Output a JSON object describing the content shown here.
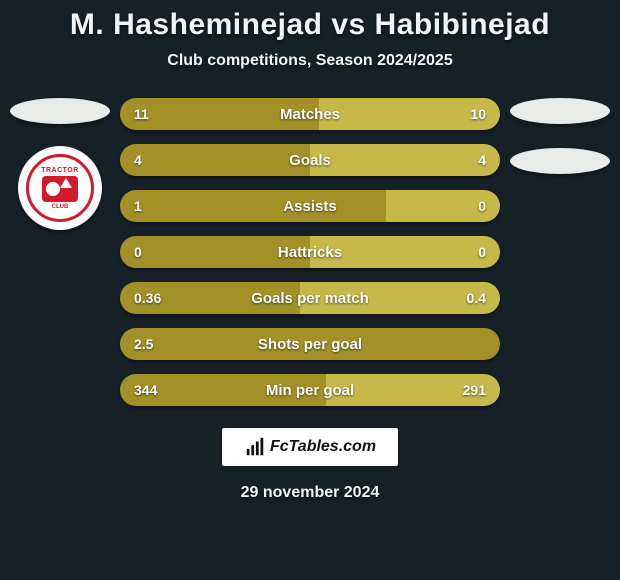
{
  "background_color": "#162027",
  "text_color": "#f2f5f7",
  "title": "M. Hasheminejad vs Habibinejad",
  "title_fontsize": 30,
  "subtitle": "Club competitions, Season 2024/2025",
  "subtitle_fontsize": 16,
  "ellipse_color": "#e8ebe8",
  "club": {
    "top_text": "TRACTOR",
    "bottom_text": "CLUB",
    "ring_color": "#d11a2a"
  },
  "bars": {
    "left_color": "#a39128",
    "right_color": "#c7b84a",
    "label_color": "#ffffff",
    "value_color": "#ffffff",
    "rows": [
      {
        "label": "Matches",
        "left_val": "11",
        "right_val": "10",
        "left_pct": 52.4,
        "right_pct": 47.6
      },
      {
        "label": "Goals",
        "left_val": "4",
        "right_val": "4",
        "left_pct": 50.0,
        "right_pct": 50.0
      },
      {
        "label": "Assists",
        "left_val": "1",
        "right_val": "0",
        "left_pct": 70.0,
        "right_pct": 30.0
      },
      {
        "label": "Hattricks",
        "left_val": "0",
        "right_val": "0",
        "left_pct": 50.0,
        "right_pct": 50.0
      },
      {
        "label": "Goals per match",
        "left_val": "0.36",
        "right_val": "0.4",
        "left_pct": 47.4,
        "right_pct": 52.6
      },
      {
        "label": "Shots per goal",
        "left_val": "2.5",
        "right_val": "",
        "left_pct": 100.0,
        "right_pct": 0.0
      },
      {
        "label": "Min per goal",
        "left_val": "344",
        "right_val": "291",
        "left_pct": 54.2,
        "right_pct": 45.8
      }
    ]
  },
  "footer": {
    "brand": "FcTables.com",
    "date": "29 november 2024"
  }
}
